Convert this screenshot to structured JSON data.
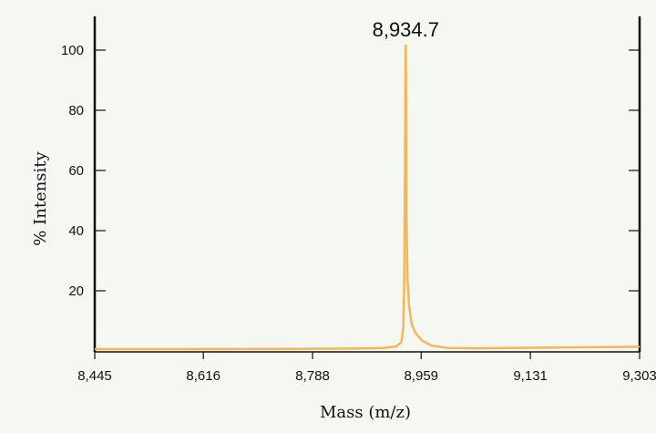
{
  "chart_data": {
    "type": "line",
    "title": "",
    "xlabel": "Mass (m/z)",
    "ylabel": "% Intensity",
    "xlim": [
      8445,
      9303
    ],
    "ylim": [
      0,
      110
    ],
    "x_ticks": [
      "8,445",
      "8,616",
      "8,788",
      "8,959",
      "9,131",
      "9,303"
    ],
    "x_tick_values": [
      8445,
      8616,
      8788,
      8959,
      9131,
      9303
    ],
    "y_ticks": [
      "20",
      "40",
      "60",
      "80",
      "100"
    ],
    "y_tick_values": [
      20,
      40,
      60,
      80,
      100
    ],
    "grid": false,
    "legend": "none",
    "line_color": "#f7b655",
    "annotations": [
      {
        "text": "8,934.7",
        "x": 8934.7,
        "y": 101.5
      }
    ],
    "series": [
      {
        "x": [
          8445,
          8600,
          8750,
          8850,
          8900,
          8920,
          8928,
          8931,
          8932.5,
          8933.5,
          8934.2,
          8934.7,
          8935.2,
          8936,
          8937.5,
          8940,
          8944,
          8950,
          8960,
          8975,
          9000,
          9050,
          9150,
          9250,
          9303
        ],
        "y": [
          0.6,
          0.6,
          0.7,
          0.8,
          1.0,
          1.5,
          3,
          8,
          25,
          60,
          90,
          101.5,
          90,
          45,
          24,
          15,
          9,
          6,
          3.5,
          1.8,
          1.0,
          0.9,
          1.1,
          1.3,
          1.4
        ]
      }
    ]
  }
}
